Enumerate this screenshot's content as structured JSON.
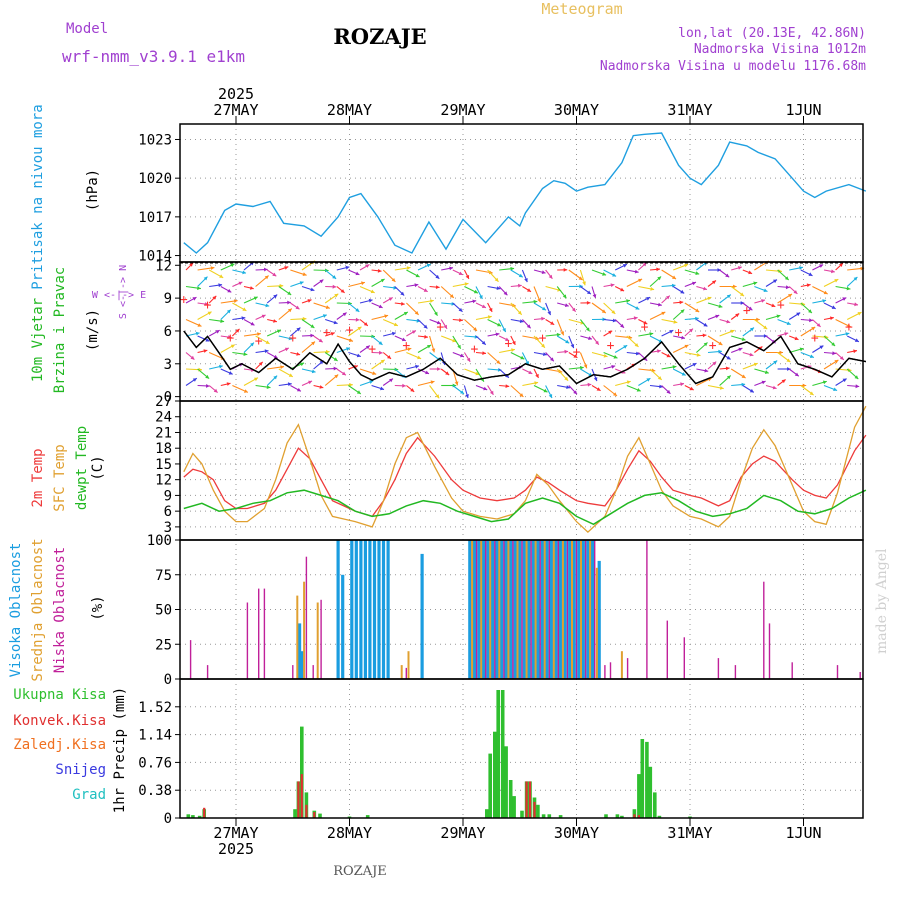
{
  "header": {
    "model_label": "Model",
    "model_name": "wrf-nmm_v3.9.1 e1km",
    "station": "ROZAJE",
    "chart_kind": "Meteogram",
    "coords": "lon,lat (20.13E, 42.86N)",
    "elevation": "Nadmorska Visina 1012m",
    "model_elevation": "Nadmorska Visina u modelu 1176.68m",
    "year_label": "2025",
    "footer_station": "ROZAJE",
    "credit": "made by Angel"
  },
  "days": [
    "27MAY",
    "28MAY",
    "29MAY",
    "30MAY",
    "31MAY",
    "1JUN"
  ],
  "colors": {
    "pressure": "#1f9fe0",
    "wind_speed": "#000000",
    "t2m": "#ee3b3b",
    "sfc": "#e0a030",
    "dewpt": "#22b822",
    "high_cloud": "#1a9de0",
    "mid_cloud": "#e0a030",
    "low_cloud": "#c0209a",
    "total_precip": "#2fbf2f",
    "conv_precip": "#e03030",
    "frz_precip": "#f07020",
    "snow": "#3a3ae0",
    "hail": "#20c0c0"
  },
  "panel_labels": {
    "pressure": [
      "Pritisak na nivou mora",
      "(hPa)"
    ],
    "wind": [
      "10m Vjetar",
      "Brzina i Pravac",
      "(m/s)"
    ],
    "compass": [
      "W <-|-> E",
      "S <-|-> N"
    ],
    "temp": [
      "2m Temp",
      "SFC Temp",
      "dewpt Temp",
      "(C)"
    ],
    "cloud": [
      "Visoka Oblacnost",
      "Srednja Oblacnost",
      "Niska Oblacnost",
      "(%)"
    ],
    "precip": [
      "Ukupna Kisa",
      "Konvek.Kisa",
      "Zaledj.Kisa",
      "Snijeg",
      "Grad",
      "1hr Precip (mm)"
    ]
  },
  "chart_data": [
    {
      "id": "pressure",
      "type": "line",
      "ylabel": "(hPa)",
      "x_unit": "days from 27MAY 00:00",
      "ylim": [
        1013.5,
        1024.2
      ],
      "yticks": [
        "1014",
        "1017",
        "1020",
        "1023"
      ],
      "series": [
        {
          "name": "Pritisak na nivou mora",
          "x": [
            -0.46,
            -0.35,
            -0.25,
            -0.1,
            0.0,
            0.15,
            0.3,
            0.42,
            0.6,
            0.75,
            0.9,
            1.0,
            1.1,
            1.25,
            1.4,
            1.55,
            1.7,
            1.85,
            2.0,
            2.2,
            2.4,
            2.5,
            2.55,
            2.7,
            2.8,
            2.9,
            3.0,
            3.1,
            3.25,
            3.4,
            3.5,
            3.6,
            3.75,
            3.9,
            4.0,
            4.1,
            4.25,
            4.35,
            4.5,
            4.6,
            4.75,
            4.9,
            5.0,
            5.1,
            5.2,
            5.4,
            5.55
          ],
          "y": [
            1015.0,
            1014.2,
            1015.0,
            1017.5,
            1018.0,
            1017.8,
            1018.2,
            1016.5,
            1016.3,
            1015.5,
            1017.0,
            1018.5,
            1018.8,
            1017.0,
            1014.8,
            1014.2,
            1016.6,
            1014.5,
            1016.8,
            1015.0,
            1017.0,
            1016.3,
            1017.3,
            1019.2,
            1019.8,
            1019.6,
            1019.0,
            1019.3,
            1019.5,
            1021.2,
            1023.3,
            1023.4,
            1023.5,
            1021.0,
            1020.0,
            1019.5,
            1021.0,
            1022.8,
            1022.5,
            1022.0,
            1021.5,
            1020.0,
            1019.0,
            1018.5,
            1019.0,
            1019.5,
            1019.0
          ]
        }
      ]
    },
    {
      "id": "wind",
      "type": "line",
      "ylabel": "(m/s)",
      "x_unit": "days from 27MAY 00:00",
      "ylim": [
        -0.4,
        12.3
      ],
      "yticks": [
        "0",
        "3",
        "6",
        "9",
        "12"
      ],
      "series": [
        {
          "name": "10m Vjetar",
          "x": [
            -0.46,
            -0.35,
            -0.25,
            -0.15,
            -0.05,
            0.05,
            0.2,
            0.35,
            0.5,
            0.65,
            0.8,
            0.9,
            1.0,
            1.1,
            1.2,
            1.35,
            1.5,
            1.65,
            1.8,
            1.95,
            2.1,
            2.25,
            2.4,
            2.55,
            2.7,
            2.85,
            3.0,
            3.15,
            3.3,
            3.45,
            3.6,
            3.75,
            3.9,
            4.05,
            4.2,
            4.35,
            4.5,
            4.65,
            4.8,
            4.95,
            5.1,
            5.25,
            5.4,
            5.55
          ],
          "y": [
            6.0,
            4.5,
            5.5,
            4.0,
            2.5,
            3.0,
            2.2,
            3.5,
            2.5,
            4.0,
            3.0,
            4.8,
            3.2,
            2.0,
            1.5,
            2.2,
            1.8,
            2.5,
            3.5,
            2.0,
            1.5,
            1.8,
            2.0,
            3.0,
            2.5,
            2.8,
            1.2,
            2.0,
            1.8,
            2.5,
            3.5,
            5.0,
            3.0,
            1.2,
            1.8,
            4.5,
            5.0,
            4.2,
            5.5,
            3.0,
            2.5,
            1.8,
            3.5,
            3.2
          ]
        }
      ]
    },
    {
      "id": "temperature",
      "type": "line",
      "ylabel": "(C)",
      "x_unit": "days from 27MAY 00:00",
      "ylim": [
        0.5,
        27
      ],
      "yticks": [
        "3",
        "6",
        "9",
        "12",
        "15",
        "18",
        "21",
        "24",
        "27"
      ],
      "series": [
        {
          "name": "2m Temp",
          "x": [
            -0.46,
            -0.38,
            -0.3,
            -0.2,
            -0.1,
            0.0,
            0.1,
            0.25,
            0.35,
            0.45,
            0.55,
            0.65,
            0.75,
            0.85,
            0.95,
            1.05,
            1.2,
            1.3,
            1.4,
            1.5,
            1.6,
            1.75,
            1.9,
            2.0,
            2.15,
            2.3,
            2.45,
            2.55,
            2.65,
            2.75,
            2.85,
            3.0,
            3.1,
            3.25,
            3.35,
            3.45,
            3.55,
            3.65,
            3.75,
            3.85,
            4.0,
            4.1,
            4.25,
            4.35,
            4.45,
            4.55,
            4.65,
            4.75,
            4.9,
            5.0,
            5.1,
            5.2,
            5.3,
            5.45,
            5.55
          ],
          "y": [
            12.5,
            14.0,
            13.5,
            12.0,
            8.0,
            6.5,
            6.5,
            7.5,
            10.0,
            14.0,
            18.0,
            16.0,
            12.0,
            8.0,
            7.0,
            6.0,
            5.0,
            8.0,
            12.0,
            17.0,
            20.0,
            16.5,
            12.0,
            10.0,
            8.5,
            8.0,
            8.5,
            10.0,
            12.5,
            11.5,
            10.0,
            8.0,
            7.5,
            7.0,
            10.0,
            14.0,
            17.5,
            15.5,
            12.5,
            10.0,
            9.0,
            8.5,
            7.0,
            8.0,
            12.5,
            15.0,
            16.5,
            15.5,
            12.0,
            10.0,
            9.0,
            8.5,
            11.0,
            17.5,
            20.5
          ]
        },
        {
          "name": "SFC Temp",
          "x": [
            -0.46,
            -0.38,
            -0.3,
            -0.2,
            -0.1,
            0.0,
            0.1,
            0.25,
            0.35,
            0.45,
            0.55,
            0.65,
            0.75,
            0.85,
            0.95,
            1.05,
            1.2,
            1.3,
            1.4,
            1.5,
            1.6,
            1.75,
            1.9,
            2.0,
            2.15,
            2.3,
            2.45,
            2.55,
            2.65,
            2.75,
            2.85,
            3.0,
            3.1,
            3.25,
            3.35,
            3.45,
            3.55,
            3.65,
            3.75,
            3.85,
            4.0,
            4.1,
            4.25,
            4.35,
            4.45,
            4.55,
            4.65,
            4.75,
            4.9,
            5.0,
            5.1,
            5.2,
            5.3,
            5.45,
            5.55
          ],
          "y": [
            13.5,
            17.0,
            15.0,
            10.0,
            6.0,
            4.0,
            4.0,
            6.5,
            12.0,
            19.0,
            22.5,
            16.0,
            9.0,
            5.0,
            4.5,
            4.0,
            3.0,
            8.0,
            15.0,
            20.0,
            21.0,
            14.5,
            8.5,
            6.0,
            5.0,
            4.5,
            5.5,
            8.0,
            13.0,
            11.0,
            8.0,
            4.0,
            2.0,
            5.0,
            10.0,
            16.5,
            20.0,
            15.0,
            10.0,
            7.0,
            5.0,
            4.5,
            3.0,
            5.0,
            12.0,
            18.0,
            21.5,
            18.5,
            11.0,
            6.0,
            4.0,
            3.5,
            9.5,
            22.0,
            26.0
          ]
        },
        {
          "name": "dewpt Temp",
          "x": [
            -0.46,
            -0.3,
            -0.15,
            0.0,
            0.15,
            0.3,
            0.45,
            0.6,
            0.75,
            0.9,
            1.05,
            1.2,
            1.35,
            1.5,
            1.65,
            1.8,
            1.95,
            2.1,
            2.25,
            2.4,
            2.55,
            2.7,
            2.85,
            3.0,
            3.15,
            3.3,
            3.45,
            3.6,
            3.75,
            3.9,
            4.05,
            4.2,
            4.35,
            4.5,
            4.65,
            4.8,
            4.95,
            5.1,
            5.25,
            5.4,
            5.55
          ],
          "y": [
            6.5,
            7.5,
            6.0,
            6.5,
            7.5,
            8.0,
            9.5,
            10.0,
            9.0,
            8.0,
            6.0,
            5.0,
            5.5,
            7.0,
            8.0,
            7.5,
            6.0,
            5.0,
            4.0,
            4.5,
            7.5,
            8.5,
            7.5,
            5.0,
            3.5,
            5.5,
            7.5,
            9.0,
            9.5,
            8.0,
            6.0,
            5.0,
            5.5,
            6.5,
            9.0,
            8.0,
            6.0,
            5.5,
            6.5,
            8.5,
            10.0
          ]
        }
      ]
    },
    {
      "id": "cloud",
      "type": "bar",
      "ylabel": "(%)",
      "x_unit": "days from 27MAY 00:00",
      "ylim": [
        0,
        100
      ],
      "yticks": [
        "0",
        "25",
        "50",
        "75",
        "100"
      ],
      "series": [
        {
          "name": "Visoka Oblacnost",
          "x": [
            0.56,
            0.58,
            0.9,
            0.94,
            1.02,
            1.06,
            1.1,
            1.14,
            1.18,
            1.22,
            1.26,
            1.3,
            1.34,
            1.64,
            2.06,
            2.1,
            2.14,
            2.18,
            2.22,
            2.26,
            2.3,
            2.34,
            2.38,
            2.42,
            2.46,
            2.5,
            2.54,
            2.58,
            2.62,
            2.66,
            2.7,
            2.74,
            2.78,
            2.82,
            2.86,
            2.9,
            2.94,
            2.98,
            3.02,
            3.06,
            3.1,
            3.14,
            3.2
          ],
          "y": [
            40,
            20,
            100,
            75,
            100,
            100,
            100,
            100,
            100,
            100,
            100,
            100,
            100,
            90,
            100,
            100,
            100,
            100,
            100,
            100,
            100,
            100,
            100,
            100,
            100,
            100,
            100,
            100,
            100,
            100,
            100,
            100,
            100,
            100,
            100,
            100,
            100,
            100,
            100,
            100,
            100,
            100,
            85
          ]
        },
        {
          "name": "Srednja Oblacnost",
          "x": [
            0.54,
            0.6,
            0.72,
            1.46,
            1.52,
            2.08,
            2.16,
            2.24,
            2.32,
            2.4,
            2.48,
            2.56,
            2.64,
            2.72,
            2.8,
            2.88,
            2.96,
            3.04,
            3.12,
            3.18,
            3.4
          ],
          "y": [
            60,
            70,
            55,
            10,
            20,
            100,
            100,
            100,
            100,
            100,
            100,
            100,
            100,
            100,
            100,
            100,
            100,
            100,
            100,
            80,
            20
          ]
        },
        {
          "name": "Niska Oblacnost",
          "x": [
            -0.4,
            -0.25,
            0.1,
            0.2,
            0.25,
            0.5,
            0.62,
            0.68,
            0.75,
            1.5,
            2.12,
            2.2,
            2.28,
            2.36,
            2.44,
            2.52,
            2.6,
            2.68,
            2.76,
            2.84,
            2.92,
            3.0,
            3.08,
            3.16,
            3.25,
            3.3,
            3.45,
            3.62,
            3.8,
            3.95,
            4.25,
            4.4,
            4.65,
            4.7,
            4.9,
            5.3,
            5.5
          ],
          "y": [
            28,
            10,
            55,
            65,
            65,
            10,
            88,
            10,
            57,
            8,
            100,
            100,
            100,
            100,
            100,
            100,
            100,
            100,
            100,
            100,
            100,
            100,
            100,
            100,
            10,
            12,
            15,
            100,
            42,
            30,
            15,
            10,
            70,
            40,
            12,
            10,
            5
          ]
        }
      ]
    },
    {
      "id": "precip",
      "type": "bar",
      "ylabel": "1hr Precip (mm)",
      "x_unit": "days from 27MAY 00:00",
      "ylim": [
        0,
        1.9
      ],
      "yticks": [
        "0",
        "0.38",
        "0.76",
        "1.14",
        "1.52"
      ],
      "series": [
        {
          "name": "Ukupna Kisa",
          "x": [
            -0.42,
            -0.38,
            -0.32,
            -0.28,
            0.52,
            0.55,
            0.58,
            0.62,
            0.69,
            0.74,
            1.0,
            1.16,
            2.21,
            2.24,
            2.28,
            2.31,
            2.35,
            2.38,
            2.42,
            2.45,
            2.52,
            2.56,
            2.59,
            2.63,
            2.66,
            2.71,
            2.76,
            2.86,
            3.26,
            3.36,
            3.4,
            3.51,
            3.55,
            3.58,
            3.62,
            3.65,
            3.69,
            3.73,
            4.0
          ],
          "y": [
            0.05,
            0.04,
            0.03,
            0.12,
            0.12,
            0.5,
            1.25,
            0.35,
            0.1,
            0.06,
            0.02,
            0.04,
            0.12,
            0.88,
            1.18,
            1.75,
            1.75,
            0.98,
            0.52,
            0.3,
            0.1,
            0.5,
            0.5,
            0.28,
            0.18,
            0.05,
            0.05,
            0.04,
            0.05,
            0.05,
            0.03,
            0.12,
            0.6,
            1.08,
            1.04,
            0.7,
            0.35,
            0.03,
            0.02
          ]
        },
        {
          "name": "Konvek.Kisa",
          "x": [
            -0.28,
            0.55,
            0.58,
            0.62,
            0.69,
            2.56,
            2.59,
            2.63,
            3.51,
            3.55
          ],
          "y": [
            0.14,
            0.5,
            0.6,
            0.18,
            0.08,
            0.5,
            0.5,
            0.22,
            0.05,
            0.04
          ]
        }
      ]
    }
  ]
}
